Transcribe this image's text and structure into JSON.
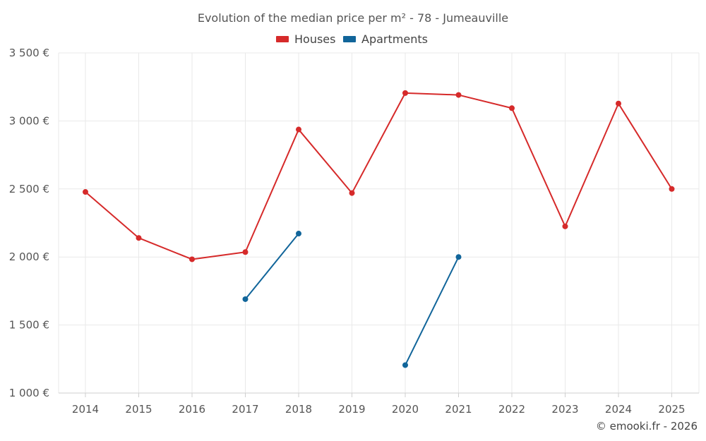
{
  "chart_data": {
    "type": "line",
    "title": "Evolution of the median price per m² - 78 - Jumeauville",
    "x": [
      "2014",
      "2015",
      "2016",
      "2017",
      "2018",
      "2019",
      "2020",
      "2021",
      "2022",
      "2023",
      "2024",
      "2025"
    ],
    "series": [
      {
        "name": "Houses",
        "color": "#d62a2a",
        "values": [
          2478,
          2140,
          1983,
          2036,
          2937,
          2470,
          3205,
          3191,
          3094,
          2225,
          3128,
          2500
        ]
      },
      {
        "name": "Apartments",
        "color": "#11659a",
        "values": [
          null,
          null,
          null,
          1690,
          2172,
          null,
          1205,
          2000,
          null,
          null,
          null,
          null
        ]
      }
    ],
    "yticks": [
      1000,
      1500,
      2000,
      2500,
      3000,
      3500
    ],
    "ytick_labels": [
      "1 000 €",
      "1 500 €",
      "2 000 €",
      "2 500 €",
      "3 000 €",
      "3 500 €"
    ],
    "ylim": [
      1000,
      3500
    ],
    "grid": true,
    "legend_position": "top-center"
  },
  "credit": "© emooki.fr - 2026"
}
